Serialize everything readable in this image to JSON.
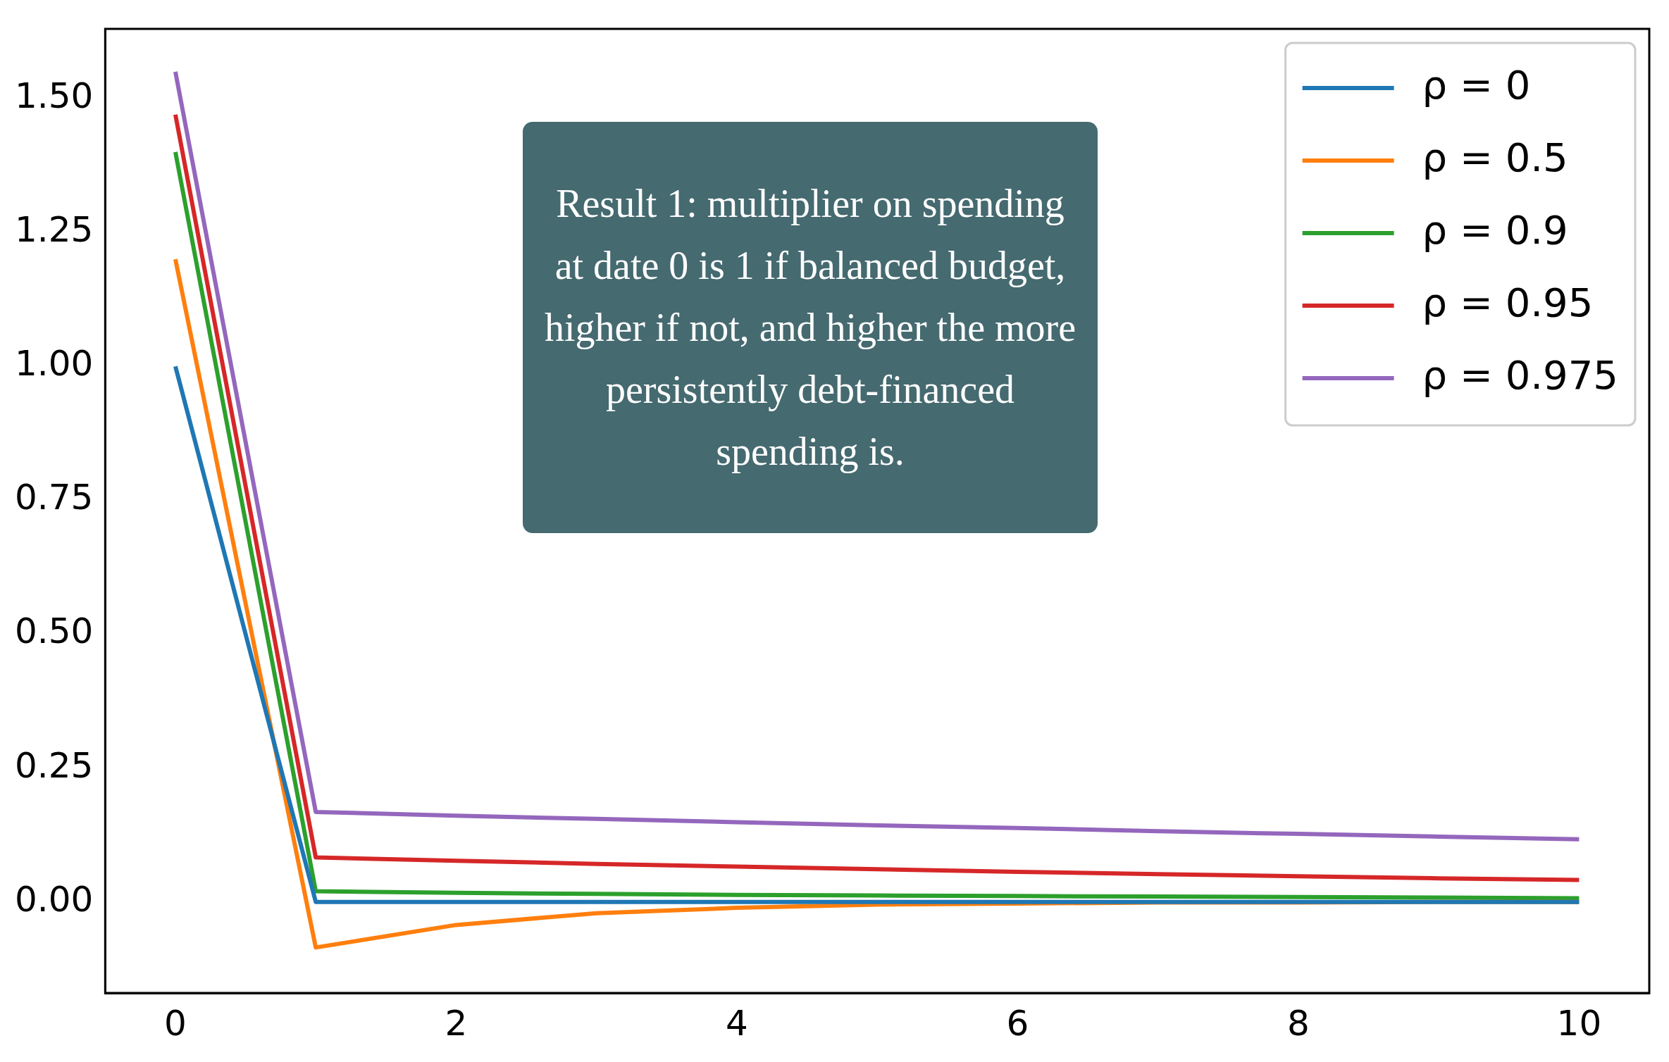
{
  "chart_data": {
    "type": "line",
    "x": [
      0,
      1,
      2,
      3,
      4,
      5,
      6,
      7,
      8,
      9,
      10
    ],
    "series": [
      {
        "name": "ρ = 0",
        "color": "#1f77b4",
        "values": [
          1.0,
          0,
          0,
          0,
          0,
          0,
          0,
          0,
          0,
          0,
          0
        ]
      },
      {
        "name": "ρ = 0.5",
        "color": "#ff7f0e",
        "values": [
          1.2,
          -0.085,
          -0.043,
          -0.021,
          -0.011,
          -0.005,
          -0.003,
          -0.001,
          -0.001,
          0,
          0
        ]
      },
      {
        "name": "ρ = 0.9",
        "color": "#2ca02c",
        "values": [
          1.4,
          0.02,
          0.017,
          0.015,
          0.013,
          0.012,
          0.011,
          0.01,
          0.009,
          0.008,
          0.007
        ]
      },
      {
        "name": "ρ = 0.95",
        "color": "#d62728",
        "values": [
          1.47,
          0.083,
          0.077,
          0.071,
          0.066,
          0.061,
          0.056,
          0.052,
          0.048,
          0.044,
          0.041
        ]
      },
      {
        "name": "ρ = 0.975",
        "color": "#9467bd",
        "values": [
          1.55,
          0.168,
          0.161,
          0.155,
          0.149,
          0.143,
          0.138,
          0.132,
          0.127,
          0.122,
          0.117
        ]
      }
    ],
    "xlim": [
      -0.5,
      10.5
    ],
    "xticks": [
      0,
      2,
      4,
      6,
      8,
      10
    ],
    "ylim": [
      -0.17,
      1.63
    ],
    "yticks": [
      {
        "value": 0,
        "label": "0.00"
      },
      {
        "value": 0.25,
        "label": "0.25"
      },
      {
        "value": 0.5,
        "label": "0.50"
      },
      {
        "value": 0.75,
        "label": "0.75"
      },
      {
        "value": 1,
        "label": "1.00"
      },
      {
        "value": 1.25,
        "label": "1.25"
      },
      {
        "value": 1.5,
        "label": "1.50"
      }
    ],
    "grid": false,
    "legend": "top right",
    "marker": "none",
    "line_style": "solid",
    "annotations": [
      "Result 1: multiplier on spending at date 0 is 1 if balanced budget, higher if not, and higher the more persistently debt-financed spending is."
    ]
  }
}
